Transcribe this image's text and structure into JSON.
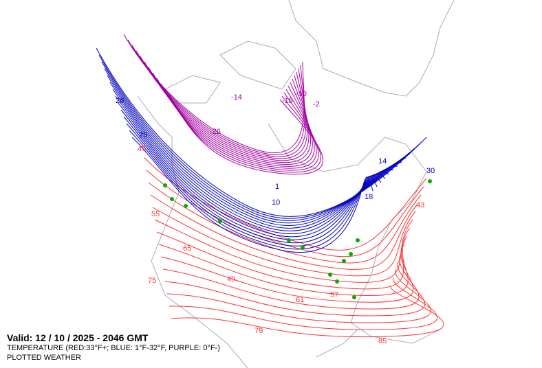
{
  "map": {
    "valid_text": "Valid: 12 / 10 / 2025  -  2046 GMT",
    "legend_text": "TEMPERATURE (RED:33°F+; BLUE: 1°F-32°F, PURPLE: 0°F-)",
    "product_text": "PLOTTED WEATHER",
    "colors": {
      "coastline": "#a8aab8",
      "warm": "#ff3030",
      "cold": "#0000c0",
      "frigid": "#a000a0",
      "weather_symbols": "#00b000",
      "fog_symbols": "#d0c000"
    },
    "contour_labels": [
      {
        "text": "26",
        "band": "cold"
      },
      {
        "text": "25",
        "band": "cold"
      },
      {
        "text": "45",
        "band": "warm"
      },
      {
        "text": "-14",
        "band": "frigid"
      },
      {
        "text": "-26",
        "band": "frigid"
      },
      {
        "text": "-10",
        "band": "frigid"
      },
      {
        "text": "-18",
        "band": "frigid"
      },
      {
        "text": "-2",
        "band": "frigid"
      },
      {
        "text": "10",
        "band": "cold"
      },
      {
        "text": "14",
        "band": "cold"
      },
      {
        "text": "18",
        "band": "cold"
      },
      {
        "text": "30",
        "band": "cold"
      },
      {
        "text": "1",
        "band": "cold"
      },
      {
        "text": "55",
        "band": "warm"
      },
      {
        "text": "65",
        "band": "warm"
      },
      {
        "text": "75",
        "band": "warm"
      },
      {
        "text": "49",
        "band": "warm"
      },
      {
        "text": "61",
        "band": "warm"
      },
      {
        "text": "79",
        "band": "warm"
      },
      {
        "text": "85",
        "band": "warm"
      },
      {
        "text": "43",
        "band": "warm"
      },
      {
        "text": "57",
        "band": "warm"
      }
    ]
  }
}
